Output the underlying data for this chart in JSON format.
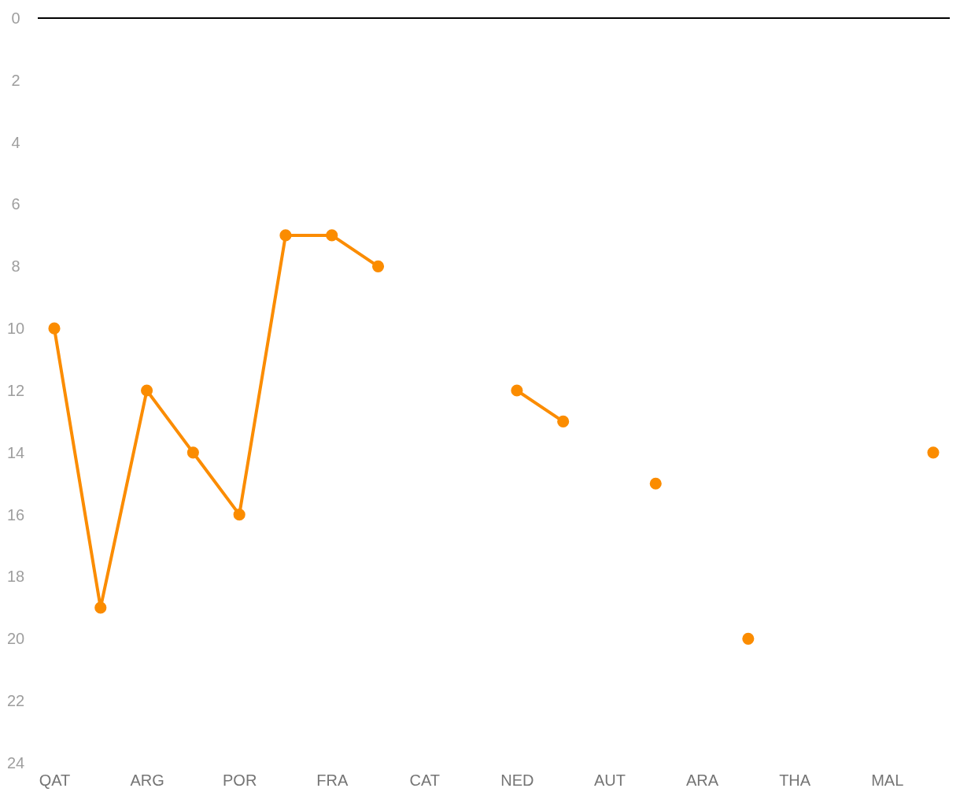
{
  "chart_data": {
    "type": "line",
    "categories": [
      "QAT",
      null,
      "ARG",
      null,
      "POR",
      null,
      "FRA",
      null,
      "CAT",
      null,
      "NED",
      null,
      "AUT",
      null,
      "ARA",
      null,
      "THA",
      null,
      "MAL",
      null
    ],
    "series": [
      {
        "color": "#fb8c00",
        "values": [
          10,
          19,
          12,
          14,
          16,
          7,
          7,
          8,
          null,
          null,
          12,
          13,
          null,
          15,
          null,
          20,
          null,
          null,
          null,
          14
        ]
      }
    ],
    "ylim": [
      24,
      0
    ],
    "yticks": [
      0,
      2,
      4,
      6,
      8,
      10,
      12,
      14,
      16,
      18,
      20,
      22,
      24
    ],
    "grid": false,
    "marker": "circle",
    "line_style": "solid"
  }
}
